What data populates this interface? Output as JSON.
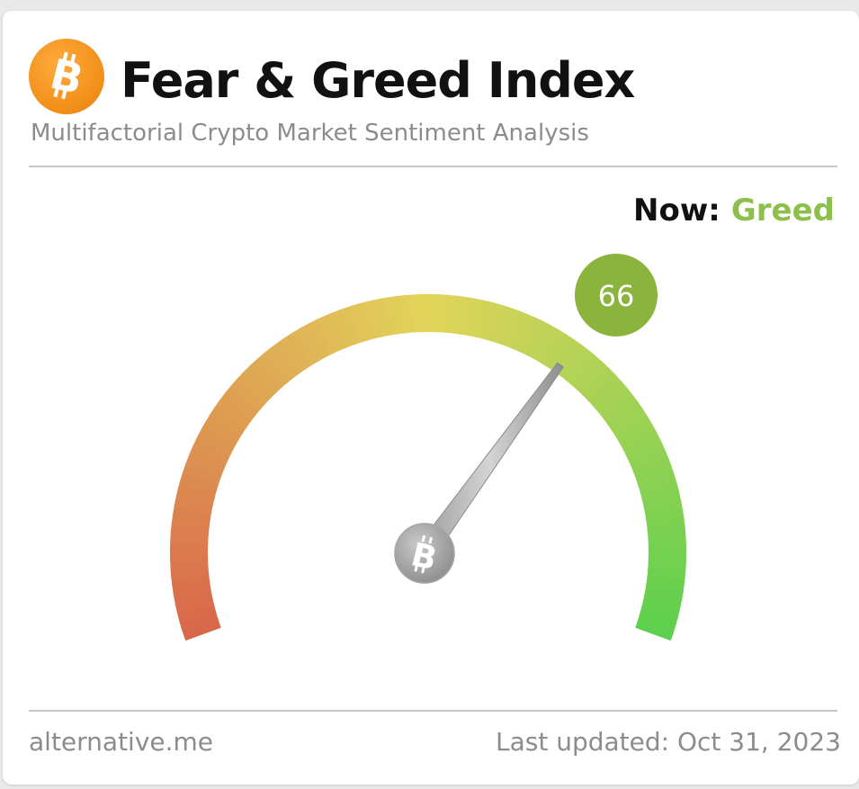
{
  "header": {
    "title": "Fear & Greed Index",
    "subtitle": "Multifactorial Crypto Market Sentiment Analysis",
    "logo_icon": "bitcoin-icon",
    "logo_color": "#f7931a"
  },
  "status": {
    "now_label": "Now:",
    "classification": "Greed",
    "classification_color": "#8cc04a"
  },
  "gauge": {
    "value": 66,
    "value_label": "66",
    "min": 0,
    "max": 100,
    "badge_color": "#8ab43c",
    "hub_icon": "bitcoin-icon",
    "colors": {
      "fear": "#d9664a",
      "neutral": "#e2d45a",
      "greed": "#5cd04e"
    }
  },
  "footer": {
    "source": "alternative.me",
    "last_updated": "Last updated: Oct 31, 2023"
  }
}
